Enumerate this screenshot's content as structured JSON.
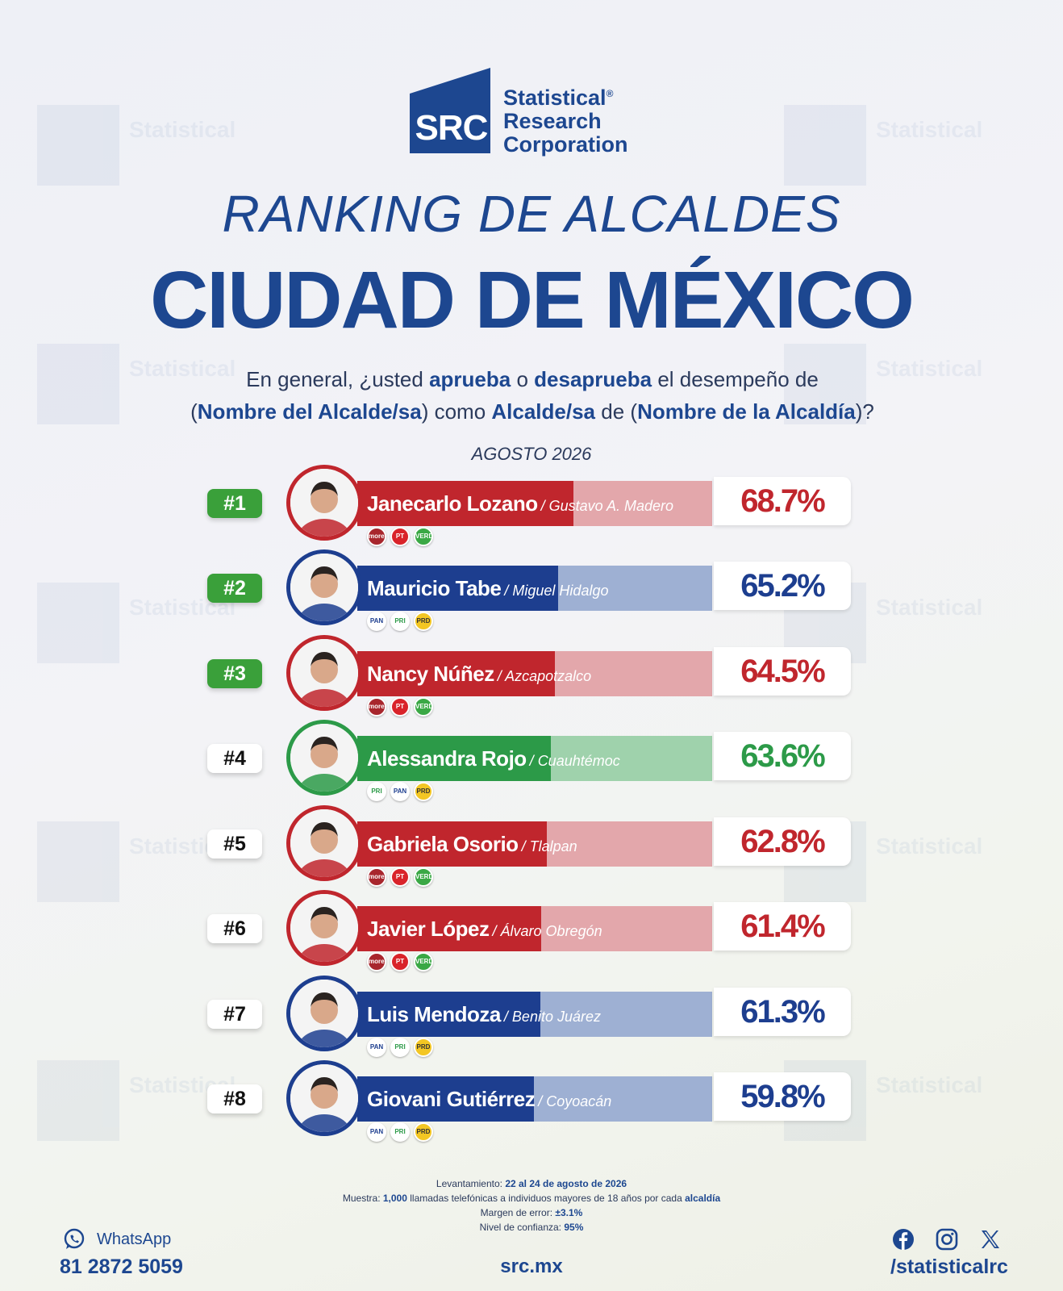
{
  "brand": {
    "logo_mark": "SRC",
    "name_line1": "Statistical",
    "name_line2": "Research",
    "name_line3": "Corporation",
    "trademark": "®"
  },
  "headline": "RANKING DE ALCALDES",
  "city": "CIUDAD DE MÉXICO",
  "question": {
    "p1": "En general, ¿usted ",
    "b1": "aprueba",
    "p2": " o ",
    "b2": "desaprueba",
    "p3": " el desempeño de",
    "p4": "(",
    "b3": "Nombre del Alcalde/sa",
    "p5": ") como ",
    "b4": "Alcalde/sa",
    "p6": " de (",
    "b5": "Nombre de la Alcaldía",
    "p7": ")?"
  },
  "period": "AGOSTO 2026",
  "colors": {
    "morena_red": "#c0262d",
    "morena_light": "#e3a7ab",
    "pan_blue": "#1d3e8f",
    "pan_light": "#9eb0d3",
    "mc_green": "#2c9a48",
    "mc_light": "#9fd2ac",
    "rank_green": "#3aa03a",
    "brand_blue": "#1d4790"
  },
  "chart_data": {
    "type": "bar",
    "orientation": "horizontal",
    "unit": "%",
    "xlim": [
      0,
      100
    ],
    "items": [
      {
        "rank": "#1",
        "name": "Janecarlo Lozano",
        "borough": "Gustavo A. Madero",
        "value": 68.7,
        "label": "68.7%",
        "color": "#c0262d",
        "light": "#e3a7ab",
        "parties": [
          "morena",
          "PT",
          "VERDE"
        ]
      },
      {
        "rank": "#2",
        "name": "Mauricio Tabe",
        "borough": "Miguel Hidalgo",
        "value": 65.2,
        "label": "65.2%",
        "color": "#1d3e8f",
        "light": "#9eb0d3",
        "parties": [
          "PAN",
          "PRI",
          "PRD"
        ]
      },
      {
        "rank": "#3",
        "name": "Nancy Núñez",
        "borough": "Azcapotzalco",
        "value": 64.5,
        "label": "64.5%",
        "color": "#c0262d",
        "light": "#e3a7ab",
        "parties": [
          "morena",
          "PT",
          "VERDE"
        ]
      },
      {
        "rank": "#4",
        "name": "Alessandra Rojo",
        "borough": "Cuauhtémoc",
        "value": 63.6,
        "label": "63.6%",
        "color": "#2c9a48",
        "light": "#9fd2ac",
        "parties": [
          "PRI",
          "PAN",
          "PRD"
        ]
      },
      {
        "rank": "#5",
        "name": "Gabriela Osorio",
        "borough": "Tlalpan",
        "value": 62.8,
        "label": "62.8%",
        "color": "#c0262d",
        "light": "#e3a7ab",
        "parties": [
          "morena",
          "PT",
          "VERDE"
        ]
      },
      {
        "rank": "#6",
        "name": "Javier López",
        "borough": "Álvaro Obregón",
        "value": 61.4,
        "label": "61.4%",
        "color": "#c0262d",
        "light": "#e3a7ab",
        "parties": [
          "morena",
          "PT",
          "VERDE"
        ]
      },
      {
        "rank": "#7",
        "name": "Luis Mendoza",
        "borough": "Benito Juárez",
        "value": 61.3,
        "label": "61.3%",
        "color": "#1d3e8f",
        "light": "#9eb0d3",
        "parties": [
          "PAN",
          "PRI",
          "PRD"
        ]
      },
      {
        "rank": "#8",
        "name": "Giovani Gutiérrez",
        "borough": "Coyoacán",
        "value": 59.8,
        "label": "59.8%",
        "color": "#1d3e8f",
        "light": "#9eb0d3",
        "parties": [
          "PAN",
          "PRI",
          "PRD"
        ]
      }
    ]
  },
  "methodology": {
    "l1_label": "Levantamiento: ",
    "l1_value": "22 al 24 de agosto de 2026",
    "l2_label": "Muestra: ",
    "l2_value": "1,000",
    "l2_rest": " llamadas telefónicas a individuos mayores de 18 años por cada ",
    "l2_bold": "alcaldía",
    "l3_label": "Margen de error: ",
    "l3_value": "±3.1%",
    "l4_label": "Nivel de confianza: ",
    "l4_value": "95%"
  },
  "footer": {
    "whatsapp_label": "WhatsApp",
    "whatsapp_number": "81 2872 5059",
    "site": "src.mx",
    "social_handle": "/statisticalrc"
  }
}
